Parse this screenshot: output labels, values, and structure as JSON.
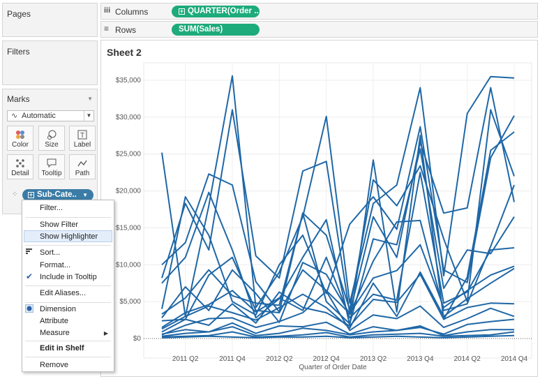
{
  "left_pane": {
    "pages_title": "Pages",
    "filters_title": "Filters",
    "marks_title": "Marks",
    "mark_type": "Automatic",
    "mark_buttons": [
      {
        "label": "Color",
        "icon": "color-dots-icon"
      },
      {
        "label": "Size",
        "icon": "size-icon"
      },
      {
        "label": "Label",
        "icon": "label-icon"
      },
      {
        "label": "Detail",
        "icon": "detail-icon"
      },
      {
        "label": "Tooltip",
        "icon": "tooltip-icon"
      },
      {
        "label": "Path",
        "icon": "path-icon"
      }
    ],
    "detail_pill": "Sub-Cate.."
  },
  "shelves": {
    "columns_label": "Columns",
    "columns_pill": "QUARTER(Order ..",
    "rows_label": "Rows",
    "rows_pill": "SUM(Sales)"
  },
  "sheet_title": "Sheet 2",
  "context_menu": {
    "items": [
      "Filter...",
      "Show Filter",
      "Show Highlighter",
      "Sort...",
      "Format...",
      "Include in Tooltip",
      "Edit Aliases...",
      "Dimension",
      "Attribute",
      "Measure",
      "Edit in Shelf",
      "Remove"
    ],
    "highlighted": "Show Highlighter"
  },
  "colors": {
    "line": "#1f67a6",
    "pill_green": "#1dab7b",
    "pill_blue": "#3b7ca6"
  },
  "chart_data": {
    "type": "line",
    "xlabel": "Quarter of Order Date",
    "ylabel": "",
    "x": [
      "2011 Q1",
      "2011 Q2",
      "2011 Q3",
      "2011 Q4",
      "2012 Q1",
      "2012 Q2",
      "2012 Q3",
      "2012 Q4",
      "2013 Q1",
      "2013 Q2",
      "2013 Q3",
      "2013 Q4",
      "2014 Q1",
      "2014 Q2",
      "2014 Q3",
      "2014 Q4"
    ],
    "x_tick_labels": [
      "2011 Q2",
      "2011 Q4",
      "2012 Q2",
      "2012 Q4",
      "2013 Q2",
      "2013 Q4",
      "2014 Q2",
      "2014 Q4"
    ],
    "y_tick_labels": [
      "$0",
      "$5,000",
      "$10,000",
      "$15,000",
      "$20,000",
      "$25,000",
      "$30,000",
      "$35,000"
    ],
    "ylim": [
      0,
      37000
    ],
    "grid": true,
    "series": [
      {
        "values": [
          25200,
          3000,
          18000,
          35600,
          4200,
          9000,
          16500,
          30100,
          4800,
          18300,
          20800,
          34000,
          8500,
          30500,
          35500,
          35300
        ]
      },
      {
        "values": [
          8200,
          18300,
          12000,
          31000,
          11200,
          8200,
          22700,
          24000,
          3400,
          16500,
          11000,
          26600,
          17000,
          17700,
          34000,
          18500
        ]
      },
      {
        "values": [
          10000,
          13000,
          22300,
          20800,
          7700,
          3600,
          17000,
          14000,
          3900,
          21500,
          18000,
          23400,
          13500,
          5000,
          31000,
          22000
        ]
      },
      {
        "values": [
          7500,
          11000,
          19800,
          12000,
          2800,
          5400,
          11000,
          16100,
          1800,
          24200,
          3600,
          27500,
          2600,
          8300,
          25500,
          28000
        ]
      },
      {
        "values": [
          4000,
          19200,
          14000,
          5000,
          3200,
          10000,
          14000,
          6100,
          15500,
          19200,
          14800,
          28700,
          9300,
          7600,
          24500,
          30200
        ]
      },
      {
        "values": [
          3300,
          5500,
          9300,
          5800,
          4800,
          4500,
          17000,
          5000,
          2000,
          13500,
          12700,
          25700,
          6800,
          12000,
          11500,
          16500
        ]
      },
      {
        "values": [
          2800,
          7000,
          3800,
          9300,
          6100,
          2200,
          10300,
          8700,
          3300,
          10500,
          15800,
          16000,
          3800,
          4700,
          12500,
          20800
        ]
      },
      {
        "values": [
          1500,
          3500,
          4600,
          6500,
          3600,
          5500,
          3800,
          11000,
          2800,
          6000,
          5200,
          22500,
          4800,
          6300,
          12000,
          12300
        ]
      },
      {
        "values": [
          2400,
          2600,
          8600,
          11000,
          3800,
          3500,
          9300,
          6500,
          3400,
          8200,
          9200,
          12700,
          4200,
          6500,
          8600,
          9800
        ]
      },
      {
        "values": [
          1300,
          3000,
          4400,
          3500,
          2500,
          4200,
          6000,
          4200,
          1400,
          7500,
          3000,
          9000,
          3000,
          5400,
          7500,
          9500
        ]
      },
      {
        "values": [
          900,
          2600,
          1800,
          4700,
          2100,
          6300,
          4200,
          3500,
          1700,
          5300,
          4900,
          8700,
          2600,
          4200,
          4800,
          4700
        ]
      },
      {
        "values": [
          500,
          1800,
          2700,
          2800,
          1500,
          2300,
          3500,
          6400,
          1100,
          3200,
          2700,
          4400,
          1500,
          2700,
          4100,
          3000
        ]
      },
      {
        "values": [
          600,
          1200,
          900,
          2100,
          700,
          1700,
          1600,
          2200,
          600,
          1600,
          1100,
          1500,
          600,
          1900,
          2300,
          2600
        ]
      },
      {
        "values": [
          300,
          700,
          900,
          1600,
          400,
          700,
          1400,
          1100,
          500,
          900,
          1100,
          1700,
          400,
          900,
          1200,
          1200
        ]
      },
      {
        "values": [
          200,
          300,
          400,
          900,
          200,
          300,
          500,
          800,
          200,
          500,
          600,
          700,
          300,
          400,
          500,
          900
        ]
      },
      {
        "values": [
          100,
          200,
          300,
          200,
          100,
          200,
          200,
          300,
          100,
          200,
          300,
          200,
          100,
          200,
          300,
          400
        ]
      }
    ]
  }
}
